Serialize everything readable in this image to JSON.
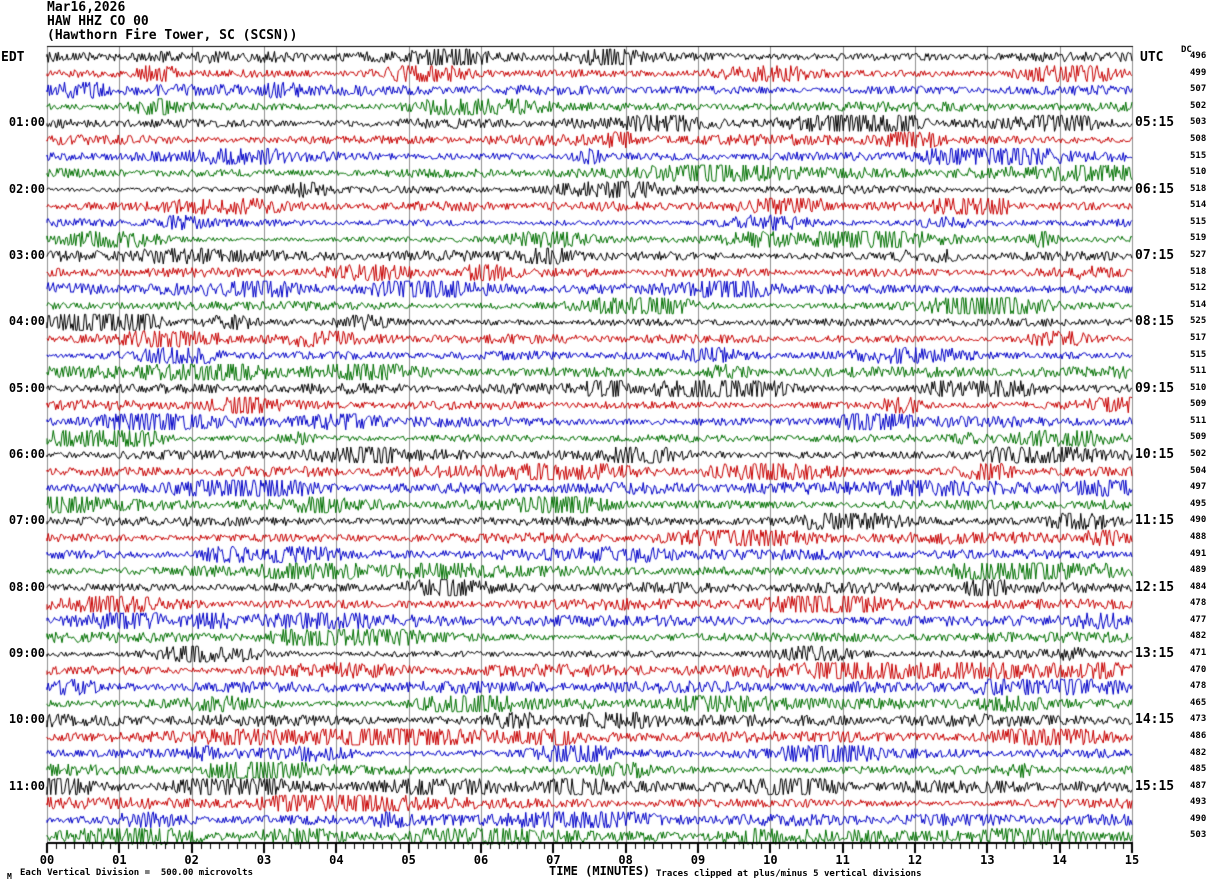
{
  "title": {
    "line1": "Mar16,2026",
    "line2": "HAW HHZ CO 00",
    "line3": "(Hawthorn Fire Tower, SC (SCSN))"
  },
  "axes": {
    "left_header": "EDT",
    "right_header": "UTC",
    "dc_header": "DC",
    "x_label": "TIME (MINUTES)",
    "x_tick_labels": [
      "00",
      "01",
      "02",
      "03",
      "04",
      "05",
      "06",
      "07",
      "08",
      "09",
      "10",
      "11",
      "12",
      "13",
      "14",
      "15"
    ]
  },
  "footer": {
    "mark": "M",
    "scale_note": "Each Vertical Division =  500.00 microvolts",
    "clip_note": "Traces clipped at plus/minus 5 vertical divisions"
  },
  "chart_data": {
    "type": "line",
    "subtype": "helicorder_seismogram",
    "date": "Mar16,2026",
    "station": "HAW HHZ CO 00",
    "station_name": "Hawthorn Fire Tower, SC (SCSN)",
    "minutes_per_row": 15,
    "x_range_minutes": [
      0,
      15
    ],
    "x_major_tick_every_min": 1,
    "x_minor_ticks_per_minute": 8,
    "rows_count": 48,
    "traces_per_hour": 4,
    "clip_divisions": 5,
    "microvolts_per_division": "500.00",
    "trace_color_cycle": [
      "#000000",
      "#c80000",
      "#0000c8",
      "#007000"
    ],
    "grid_color": "#909090",
    "background": "#ffffff",
    "rows": [
      {
        "edt": "",
        "utc": "",
        "dc": 496
      },
      {
        "edt": "",
        "utc": "",
        "dc": 499
      },
      {
        "edt": "",
        "utc": "",
        "dc": 507
      },
      {
        "edt": "",
        "utc": "",
        "dc": 502
      },
      {
        "edt": "01:00",
        "utc": "05:15",
        "dc": 503
      },
      {
        "edt": "",
        "utc": "",
        "dc": 508
      },
      {
        "edt": "",
        "utc": "",
        "dc": 515
      },
      {
        "edt": "",
        "utc": "",
        "dc": 510
      },
      {
        "edt": "02:00",
        "utc": "06:15",
        "dc": 518
      },
      {
        "edt": "",
        "utc": "",
        "dc": 514
      },
      {
        "edt": "",
        "utc": "",
        "dc": 515
      },
      {
        "edt": "",
        "utc": "",
        "dc": 519
      },
      {
        "edt": "03:00",
        "utc": "07:15",
        "dc": 527
      },
      {
        "edt": "",
        "utc": "",
        "dc": 518
      },
      {
        "edt": "",
        "utc": "",
        "dc": 512
      },
      {
        "edt": "",
        "utc": "",
        "dc": 514
      },
      {
        "edt": "04:00",
        "utc": "08:15",
        "dc": 525
      },
      {
        "edt": "",
        "utc": "",
        "dc": 517
      },
      {
        "edt": "",
        "utc": "",
        "dc": 515
      },
      {
        "edt": "",
        "utc": "",
        "dc": 511
      },
      {
        "edt": "05:00",
        "utc": "09:15",
        "dc": 510
      },
      {
        "edt": "",
        "utc": "",
        "dc": 509
      },
      {
        "edt": "",
        "utc": "",
        "dc": 511
      },
      {
        "edt": "",
        "utc": "",
        "dc": 509
      },
      {
        "edt": "06:00",
        "utc": "10:15",
        "dc": 502
      },
      {
        "edt": "",
        "utc": "",
        "dc": 504
      },
      {
        "edt": "",
        "utc": "",
        "dc": 497
      },
      {
        "edt": "",
        "utc": "",
        "dc": 495
      },
      {
        "edt": "07:00",
        "utc": "11:15",
        "dc": 490
      },
      {
        "edt": "",
        "utc": "",
        "dc": 488
      },
      {
        "edt": "",
        "utc": "",
        "dc": 491
      },
      {
        "edt": "",
        "utc": "",
        "dc": 489
      },
      {
        "edt": "08:00",
        "utc": "12:15",
        "dc": 484
      },
      {
        "edt": "",
        "utc": "",
        "dc": 478
      },
      {
        "edt": "",
        "utc": "",
        "dc": 477
      },
      {
        "edt": "",
        "utc": "",
        "dc": 482
      },
      {
        "edt": "09:00",
        "utc": "13:15",
        "dc": 471
      },
      {
        "edt": "",
        "utc": "",
        "dc": 470
      },
      {
        "edt": "",
        "utc": "",
        "dc": 478
      },
      {
        "edt": "",
        "utc": "",
        "dc": 465
      },
      {
        "edt": "10:00",
        "utc": "14:15",
        "dc": 473
      },
      {
        "edt": "",
        "utc": "",
        "dc": 486
      },
      {
        "edt": "",
        "utc": "",
        "dc": 482
      },
      {
        "edt": "",
        "utc": "",
        "dc": 485
      },
      {
        "edt": "11:00",
        "utc": "15:15",
        "dc": 487
      },
      {
        "edt": "",
        "utc": "",
        "dc": 493
      },
      {
        "edt": "",
        "utc": "",
        "dc": 490
      },
      {
        "edt": "",
        "utc": "",
        "dc": 503
      }
    ]
  }
}
